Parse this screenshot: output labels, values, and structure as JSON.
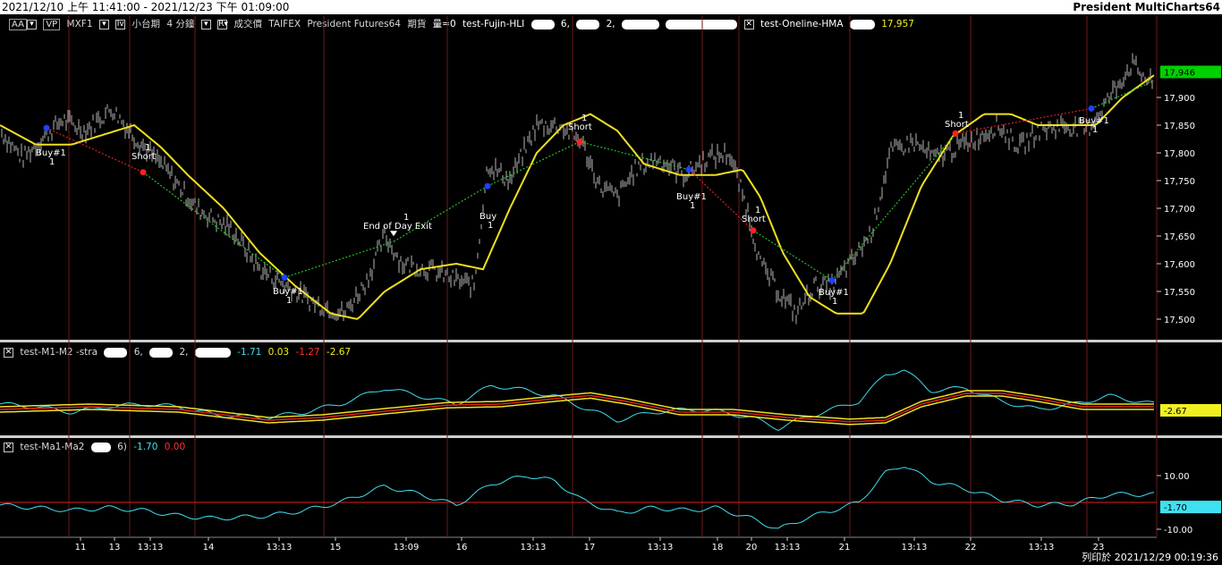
{
  "window": {
    "range": "2021/12/10 上午 11:41:00 - 2021/12/23 下午 01:09:00",
    "brand": "President MultiCharts64"
  },
  "main_legend": {
    "aa_button": "AA",
    "vp_button": "VP",
    "symbol": "MXF1",
    "name": "小台期",
    "interval": "4 分鐘",
    "price_field": "成交價",
    "exchange": "TAIFEX",
    "feed": "President Futures64",
    "contract": "期貨",
    "volume": "量=0",
    "strategy": "test-Fujin-HLI",
    "strategy_p1": "6,",
    "strategy_p2": "2,",
    "indicator": "test-Oneline-HMA",
    "indicator_value": "17,957"
  },
  "price_axis": {
    "ticks": [
      "17,900",
      "17,850",
      "17,800",
      "17,750",
      "17,700",
      "17,650",
      "17,600",
      "17,550",
      "17,500"
    ],
    "last_price": "17,946",
    "last_price_bg": "#00d000"
  },
  "sub1_legend": {
    "name": "test-M1-M2 -stra",
    "p1": "6,",
    "p2": "2,",
    "v1": "-1.71",
    "v2": "0.03",
    "v3": "-1.27",
    "v4": "-2.67"
  },
  "sub1_axis": {
    "last_value": "-2.67"
  },
  "sub2_legend": {
    "name": "test-Ma1-Ma2",
    "p1": "6)",
    "v1": "-1.70",
    "v2": "0.00"
  },
  "sub2_axis": {
    "ticks": [
      "10.00",
      "-10.00"
    ],
    "last_value": "-1.70"
  },
  "time_axis": {
    "ticks": [
      "11",
      "13",
      "13:13",
      "14",
      "13:13",
      "15",
      "13:09",
      "16",
      "13:13",
      "17",
      "13:13",
      "18",
      "20",
      "13:13",
      "21",
      "13:13",
      "22",
      "13:13",
      "23"
    ]
  },
  "trades": [
    {
      "label": "Buy#1",
      "qty": "1"
    },
    {
      "label": "Short",
      "qty": "1"
    },
    {
      "label": "Buy#1",
      "qty": "1"
    },
    {
      "label": "End of Day Exit",
      "qty": "1"
    },
    {
      "label": "Buy",
      "qty": "1"
    },
    {
      "label": "Short",
      "qty": "1"
    },
    {
      "label": "Buy#1",
      "qty": "1"
    },
    {
      "label": "Short",
      "qty": "1"
    },
    {
      "label": "Buy#1",
      "qty": "1"
    },
    {
      "label": "Short",
      "qty": "1"
    },
    {
      "label": "Buy#1",
      "qty": "1"
    }
  ],
  "footer": {
    "printed": "列印於 2021/12/29 00:19:36"
  },
  "colors": {
    "price_bars": "#b4b4b4",
    "hma": "#f0e020",
    "indicator_cyan": "#3fe0f0",
    "trend_green": "#28c028",
    "trend_red": "#e02020",
    "grid": "#6b1b1b"
  }
}
